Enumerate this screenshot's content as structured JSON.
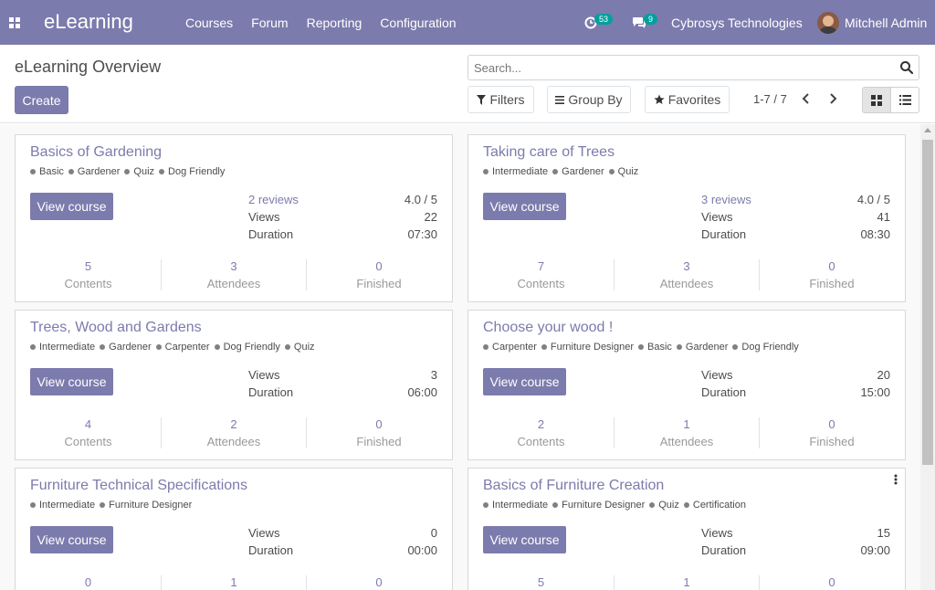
{
  "nav": {
    "brand": "eLearning",
    "menu": [
      "Courses",
      "Forum",
      "Reporting",
      "Configuration"
    ],
    "activity_count": "53",
    "messages_count": "9",
    "company": "Cybrosys Technologies",
    "user": "Mitchell Admin"
  },
  "control": {
    "title": "eLearning Overview",
    "create_label": "Create",
    "search_placeholder": "Search...",
    "filters_label": "Filters",
    "groupby_label": "Group By",
    "favorites_label": "Favorites",
    "pager": "1-7 / 7"
  },
  "courses": [
    {
      "title": "Basics of Gardening",
      "tags": [
        "Basic",
        "Gardener",
        "Quiz",
        "Dog Friendly"
      ],
      "button": "View course",
      "reviews": "2 reviews",
      "rating": "4.0 / 5",
      "views_label": "Views",
      "views": "22",
      "duration_label": "Duration",
      "duration": "07:30",
      "contents": "5",
      "attendees": "3",
      "finished": "0"
    },
    {
      "title": "Taking care of Trees",
      "tags": [
        "Intermediate",
        "Gardener",
        "Quiz"
      ],
      "button": "View course",
      "reviews": "3 reviews",
      "rating": "4.0 / 5",
      "views_label": "Views",
      "views": "41",
      "duration_label": "Duration",
      "duration": "08:30",
      "contents": "7",
      "attendees": "3",
      "finished": "0"
    },
    {
      "title": "Trees, Wood and Gardens",
      "tags": [
        "Intermediate",
        "Gardener",
        "Carpenter",
        "Dog Friendly",
        "Quiz"
      ],
      "button": "View course",
      "views_label": "Views",
      "views": "3",
      "duration_label": "Duration",
      "duration": "06:00",
      "contents": "4",
      "attendees": "2",
      "finished": "0"
    },
    {
      "title": "Choose your wood !",
      "tags": [
        "Carpenter",
        "Furniture Designer",
        "Basic",
        "Gardener",
        "Dog Friendly"
      ],
      "button": "View course",
      "views_label": "Views",
      "views": "20",
      "duration_label": "Duration",
      "duration": "15:00",
      "contents": "2",
      "attendees": "1",
      "finished": "0"
    },
    {
      "title": "Furniture Technical Specifications",
      "tags": [
        "Intermediate",
        "Furniture Designer"
      ],
      "button": "View course",
      "views_label": "Views",
      "views": "0",
      "duration_label": "Duration",
      "duration": "00:00",
      "contents": "0",
      "attendees": "1",
      "finished": "0"
    },
    {
      "title": "Basics of Furniture Creation",
      "tags": [
        "Intermediate",
        "Furniture Designer",
        "Quiz",
        "Certification"
      ],
      "button": "View course",
      "views_label": "Views",
      "views": "15",
      "duration_label": "Duration",
      "duration": "09:00",
      "contents": "5",
      "attendees": "1",
      "finished": "0"
    }
  ],
  "labels": {
    "contents": "Contents",
    "attendees": "Attendees",
    "finished": "Finished"
  }
}
